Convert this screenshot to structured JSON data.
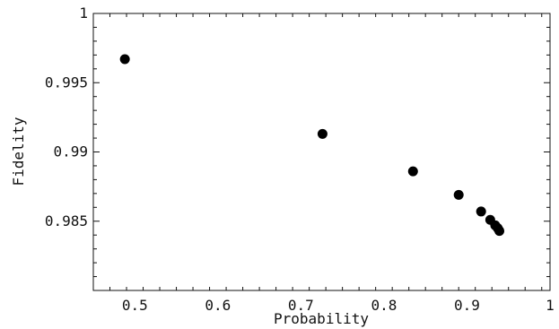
{
  "chart_data": {
    "type": "scatter",
    "title": "",
    "xlabel": "Probability",
    "ylabel": "Fidelity",
    "xlim": [
      0.45,
      1.0
    ],
    "ylim": [
      0.98,
      1.0
    ],
    "grid": false,
    "x_ticks": [
      {
        "value": 0.5,
        "label": "0.5"
      },
      {
        "value": 0.6,
        "label": "0.6"
      },
      {
        "value": 0.7,
        "label": "0.7"
      },
      {
        "value": 0.8,
        "label": "0.8"
      },
      {
        "value": 0.9,
        "label": "0.9"
      },
      {
        "value": 1.0,
        "label": "1"
      }
    ],
    "y_ticks": [
      {
        "value": 0.985,
        "label": "0.985"
      },
      {
        "value": 0.99,
        "label": "0.99"
      },
      {
        "value": 0.995,
        "label": "0.995"
      },
      {
        "value": 1.0,
        "label": "1"
      }
    ],
    "points": [
      {
        "x": 0.488,
        "y": 0.9967
      },
      {
        "x": 0.726,
        "y": 0.9913
      },
      {
        "x": 0.835,
        "y": 0.9886
      },
      {
        "x": 0.89,
        "y": 0.9869
      },
      {
        "x": 0.917,
        "y": 0.9857
      },
      {
        "x": 0.928,
        "y": 0.9851
      },
      {
        "x": 0.934,
        "y": 0.9847
      },
      {
        "x": 0.937,
        "y": 0.9845
      },
      {
        "x": 0.939,
        "y": 0.9843
      }
    ],
    "marker_color": "#000000",
    "axis_color": "#111111"
  }
}
